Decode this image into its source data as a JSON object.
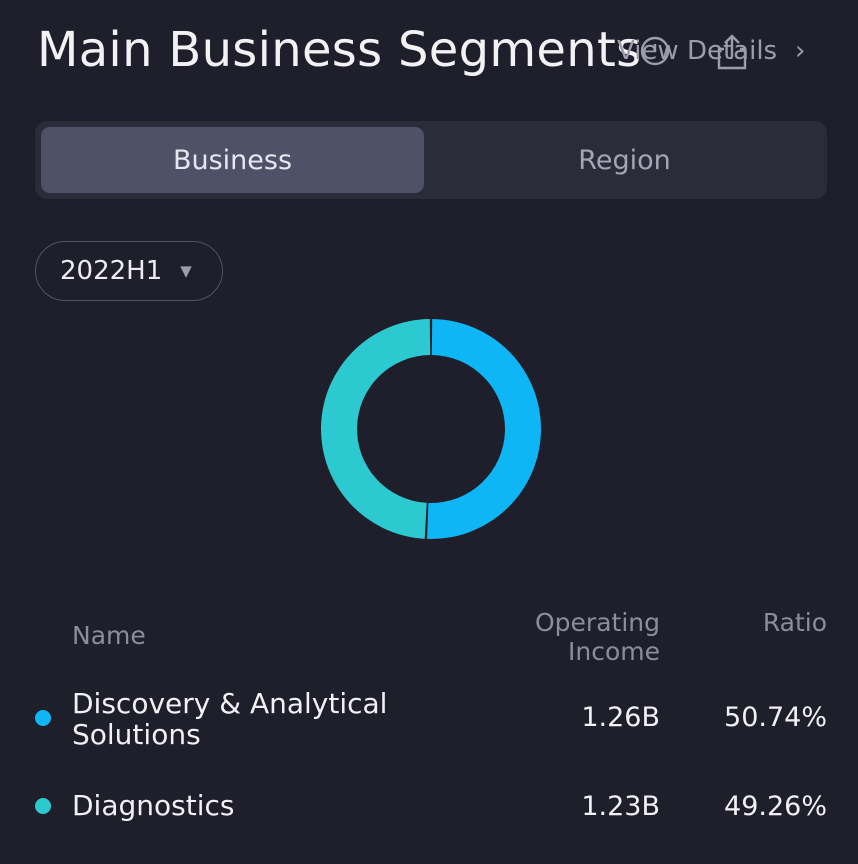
{
  "header": {
    "title": "Main Business Segments",
    "view_details_label": "View Details"
  },
  "tabs": [
    {
      "label": "Business",
      "active": true
    },
    {
      "label": "Region",
      "active": false
    }
  ],
  "period_selector": {
    "value": "2022H1"
  },
  "colors": {
    "background": "#1f1f2b",
    "discovery": "#0fb6f6",
    "diagnostics": "#2ccad0"
  },
  "chart_data": {
    "type": "pie",
    "variant": "donut",
    "title": "",
    "categories": [
      "Discovery & Analytical Solutions",
      "Diagnostics"
    ],
    "values": [
      50.74,
      49.26
    ],
    "colors": [
      "#0fb6f6",
      "#2ccad0"
    ]
  },
  "table": {
    "columns": {
      "name": "Name",
      "income": "Operating Income",
      "ratio": "Ratio"
    },
    "rows": [
      {
        "name": "Discovery & Analytical Solutions",
        "income": "1.26B",
        "ratio": "50.74%",
        "color": "#0fb6f6"
      },
      {
        "name": "Diagnostics",
        "income": "1.23B",
        "ratio": "49.26%",
        "color": "#2ccad0"
      }
    ]
  }
}
